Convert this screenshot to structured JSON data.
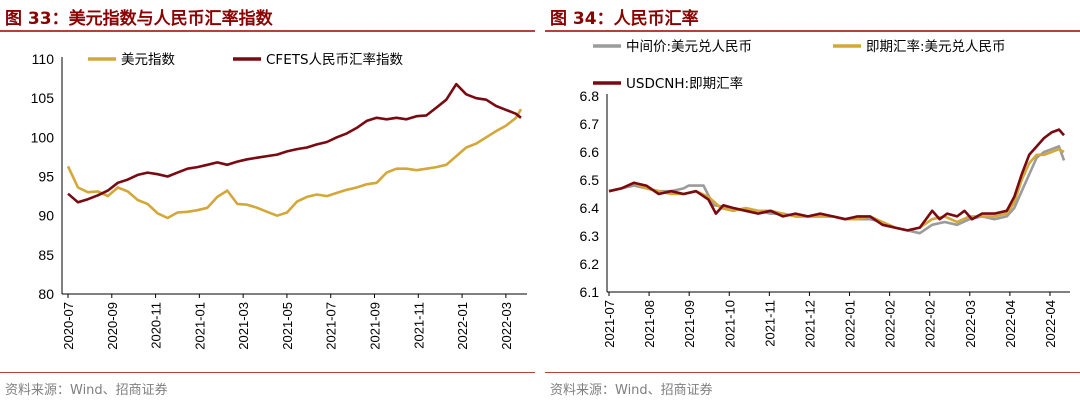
{
  "charts": [
    {
      "title": "图 33：美元指数与人民币汇率指数",
      "source": "资料来源：Wind、招商证券",
      "chart_data": {
        "type": "line",
        "x_ticks": [
          "2020-07",
          "2020-09",
          "2020-11",
          "2021-01",
          "2021-03",
          "2021-05",
          "2021-07",
          "2021-09",
          "2021-11",
          "2022-01",
          "2022-03"
        ],
        "ylim": [
          80,
          110
        ],
        "y_ticks": [
          "80",
          "85",
          "90",
          "95",
          "100",
          "105",
          "110"
        ],
        "legend_position": "top",
        "series": [
          {
            "name": "美元指数",
            "color": "#d4a838",
            "points": [
              [
                0,
                96.3
              ],
              [
                0.4,
                93.6
              ],
              [
                0.8,
                93.0
              ],
              [
                1.2,
                93.1
              ],
              [
                1.6,
                92.5
              ],
              [
                2.0,
                93.6
              ],
              [
                2.4,
                93.1
              ],
              [
                2.8,
                92.0
              ],
              [
                3.2,
                91.5
              ],
              [
                3.6,
                90.3
              ],
              [
                4.0,
                89.7
              ],
              [
                4.4,
                90.4
              ],
              [
                4.8,
                90.5
              ],
              [
                5.2,
                90.7
              ],
              [
                5.6,
                91.0
              ],
              [
                6.0,
                92.4
              ],
              [
                6.4,
                93.2
              ],
              [
                6.8,
                91.5
              ],
              [
                7.2,
                91.4
              ],
              [
                7.6,
                91.0
              ],
              [
                8.0,
                90.5
              ],
              [
                8.4,
                90.0
              ],
              [
                8.8,
                90.4
              ],
              [
                9.2,
                91.8
              ],
              [
                9.6,
                92.4
              ],
              [
                10.0,
                92.7
              ],
              [
                10.4,
                92.5
              ],
              [
                10.8,
                92.9
              ],
              [
                11.2,
                93.3
              ],
              [
                11.6,
                93.6
              ],
              [
                12.0,
                94.0
              ],
              [
                12.4,
                94.2
              ],
              [
                12.8,
                95.5
              ],
              [
                13.2,
                96.0
              ],
              [
                13.6,
                96.0
              ],
              [
                14.0,
                95.8
              ],
              [
                14.4,
                96.0
              ],
              [
                14.8,
                96.2
              ],
              [
                15.2,
                96.5
              ],
              [
                15.6,
                97.6
              ],
              [
                16.0,
                98.7
              ],
              [
                16.4,
                99.2
              ],
              [
                16.8,
                100.0
              ],
              [
                17.2,
                100.8
              ],
              [
                17.6,
                101.5
              ],
              [
                18.0,
                102.5
              ],
              [
                18.2,
                103.6
              ]
            ]
          },
          {
            "name": "CFETS人民币汇率指数",
            "color": "#7a0a12",
            "points": [
              [
                0,
                92.8
              ],
              [
                0.4,
                91.7
              ],
              [
                0.8,
                92.1
              ],
              [
                1.2,
                92.6
              ],
              [
                1.6,
                93.2
              ],
              [
                2.0,
                94.2
              ],
              [
                2.4,
                94.6
              ],
              [
                2.8,
                95.2
              ],
              [
                3.2,
                95.5
              ],
              [
                3.6,
                95.3
              ],
              [
                4.0,
                95.0
              ],
              [
                4.4,
                95.5
              ],
              [
                4.8,
                96.0
              ],
              [
                5.2,
                96.2
              ],
              [
                5.6,
                96.5
              ],
              [
                6.0,
                96.8
              ],
              [
                6.4,
                96.5
              ],
              [
                6.8,
                96.9
              ],
              [
                7.2,
                97.2
              ],
              [
                7.6,
                97.4
              ],
              [
                8.0,
                97.6
              ],
              [
                8.4,
                97.8
              ],
              [
                8.8,
                98.2
              ],
              [
                9.2,
                98.5
              ],
              [
                9.6,
                98.7
              ],
              [
                10.0,
                99.1
              ],
              [
                10.4,
                99.4
              ],
              [
                10.8,
                100.0
              ],
              [
                11.2,
                100.5
              ],
              [
                11.6,
                101.2
              ],
              [
                12.0,
                102.1
              ],
              [
                12.4,
                102.5
              ],
              [
                12.8,
                102.3
              ],
              [
                13.2,
                102.5
              ],
              [
                13.6,
                102.3
              ],
              [
                14.0,
                102.7
              ],
              [
                14.4,
                102.8
              ],
              [
                14.8,
                103.8
              ],
              [
                15.2,
                104.8
              ],
              [
                15.6,
                106.8
              ],
              [
                16.0,
                105.5
              ],
              [
                16.4,
                105.0
              ],
              [
                16.8,
                104.8
              ],
              [
                17.2,
                104.0
              ],
              [
                17.6,
                103.5
              ],
              [
                18.0,
                103.0
              ],
              [
                18.2,
                102.5
              ]
            ]
          }
        ]
      }
    },
    {
      "title": "图 34：人民币汇率",
      "source": "资料来源：Wind、招商证券",
      "chart_data": {
        "type": "line",
        "x_ticks": [
          "2021-07",
          "2021-08",
          "2021-09",
          "2021-10",
          "2021-11",
          "2021-12",
          "2022-01",
          "2022-02",
          "2022-02",
          "2022-03",
          "2022-04",
          "2022-04"
        ],
        "ylim": [
          6.1,
          6.8
        ],
        "y_ticks": [
          "6.1",
          "6.2",
          "6.3",
          "6.4",
          "6.5",
          "6.6",
          "6.7",
          "6.8"
        ],
        "legend_position": "top",
        "series": [
          {
            "name": "中间价:美元兑人民币",
            "color": "#9b9b9b",
            "points": [
              [
                0,
                6.46
              ],
              [
                0.5,
                6.47
              ],
              [
                1.0,
                6.48
              ],
              [
                1.5,
                6.47
              ],
              [
                2.0,
                6.46
              ],
              [
                2.5,
                6.46
              ],
              [
                3.0,
                6.47
              ],
              [
                3.2,
                6.48
              ],
              [
                3.8,
                6.48
              ],
              [
                4.2,
                6.41
              ],
              [
                5.0,
                6.4
              ],
              [
                5.5,
                6.39
              ],
              [
                6.0,
                6.39
              ],
              [
                6.5,
                6.38
              ],
              [
                7.0,
                6.38
              ],
              [
                7.5,
                6.37
              ],
              [
                8.0,
                6.37
              ],
              [
                8.5,
                6.37
              ],
              [
                9.0,
                6.37
              ],
              [
                9.5,
                6.36
              ],
              [
                10.0,
                6.36
              ],
              [
                10.5,
                6.36
              ],
              [
                11.0,
                6.35
              ],
              [
                11.5,
                6.33
              ],
              [
                12.0,
                6.32
              ],
              [
                12.5,
                6.31
              ],
              [
                13.0,
                6.34
              ],
              [
                13.5,
                6.35
              ],
              [
                14.0,
                6.34
              ],
              [
                14.5,
                6.36
              ],
              [
                15.0,
                6.37
              ],
              [
                15.5,
                6.36
              ],
              [
                16.0,
                6.37
              ],
              [
                16.3,
                6.4
              ],
              [
                16.6,
                6.46
              ],
              [
                16.9,
                6.52
              ],
              [
                17.2,
                6.58
              ],
              [
                17.5,
                6.6
              ],
              [
                17.8,
                6.61
              ],
              [
                18.1,
                6.62
              ],
              [
                18.3,
                6.57
              ]
            ]
          },
          {
            "name": "即期汇率:美元兑人民币",
            "color": "#d4a838",
            "points": [
              [
                0,
                6.46
              ],
              [
                0.5,
                6.47
              ],
              [
                1.0,
                6.49
              ],
              [
                1.5,
                6.47
              ],
              [
                2.0,
                6.46
              ],
              [
                2.5,
                6.45
              ],
              [
                3.0,
                6.45
              ],
              [
                3.5,
                6.46
              ],
              [
                4.0,
                6.44
              ],
              [
                4.5,
                6.4
              ],
              [
                5.0,
                6.39
              ],
              [
                5.5,
                6.4
              ],
              [
                6.0,
                6.39
              ],
              [
                6.5,
                6.39
              ],
              [
                7.0,
                6.38
              ],
              [
                7.5,
                6.37
              ],
              [
                8.0,
                6.37
              ],
              [
                8.5,
                6.37
              ],
              [
                9.0,
                6.37
              ],
              [
                9.5,
                6.36
              ],
              [
                10.0,
                6.36
              ],
              [
                10.5,
                6.37
              ],
              [
                11.0,
                6.35
              ],
              [
                11.5,
                6.33
              ],
              [
                12.0,
                6.32
              ],
              [
                12.5,
                6.33
              ],
              [
                13.0,
                6.36
              ],
              [
                13.5,
                6.37
              ],
              [
                14.0,
                6.35
              ],
              [
                14.5,
                6.37
              ],
              [
                15.0,
                6.37
              ],
              [
                15.5,
                6.37
              ],
              [
                16.0,
                6.38
              ],
              [
                16.3,
                6.42
              ],
              [
                16.6,
                6.5
              ],
              [
                16.9,
                6.56
              ],
              [
                17.2,
                6.59
              ],
              [
                17.5,
                6.59
              ],
              [
                17.8,
                6.6
              ],
              [
                18.1,
                6.61
              ],
              [
                18.3,
                6.6
              ]
            ]
          },
          {
            "name": "USDCNH:即期汇率",
            "color": "#7a0a12",
            "points": [
              [
                0,
                6.46
              ],
              [
                0.5,
                6.47
              ],
              [
                1.0,
                6.49
              ],
              [
                1.5,
                6.48
              ],
              [
                2.0,
                6.45
              ],
              [
                2.5,
                6.46
              ],
              [
                3.0,
                6.45
              ],
              [
                3.5,
                6.46
              ],
              [
                4.0,
                6.43
              ],
              [
                4.3,
                6.38
              ],
              [
                4.6,
                6.41
              ],
              [
                5.0,
                6.4
              ],
              [
                5.5,
                6.39
              ],
              [
                6.0,
                6.38
              ],
              [
                6.5,
                6.39
              ],
              [
                7.0,
                6.37
              ],
              [
                7.5,
                6.38
              ],
              [
                8.0,
                6.37
              ],
              [
                8.5,
                6.38
              ],
              [
                9.0,
                6.37
              ],
              [
                9.5,
                6.36
              ],
              [
                10.0,
                6.37
              ],
              [
                10.5,
                6.37
              ],
              [
                11.0,
                6.34
              ],
              [
                11.5,
                6.33
              ],
              [
                12.0,
                6.32
              ],
              [
                12.5,
                6.33
              ],
              [
                13.0,
                6.39
              ],
              [
                13.3,
                6.36
              ],
              [
                13.6,
                6.38
              ],
              [
                14.0,
                6.37
              ],
              [
                14.3,
                6.39
              ],
              [
                14.6,
                6.36
              ],
              [
                15.0,
                6.38
              ],
              [
                15.5,
                6.38
              ],
              [
                16.0,
                6.39
              ],
              [
                16.3,
                6.44
              ],
              [
                16.6,
                6.52
              ],
              [
                16.9,
                6.59
              ],
              [
                17.2,
                6.62
              ],
              [
                17.5,
                6.65
              ],
              [
                17.8,
                6.67
              ],
              [
                18.1,
                6.68
              ],
              [
                18.3,
                6.66
              ]
            ]
          }
        ]
      }
    }
  ]
}
